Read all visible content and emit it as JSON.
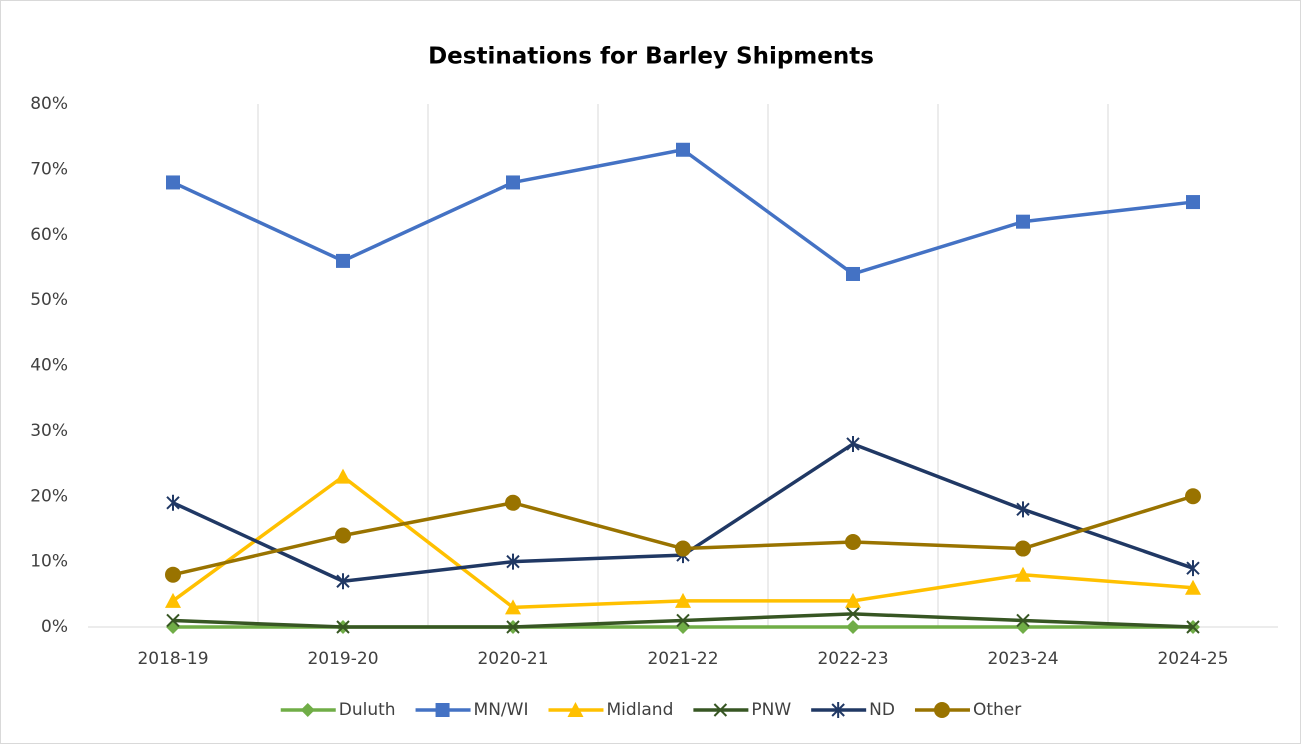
{
  "chart_data": {
    "type": "line",
    "title": "Destinations for Barley Shipments",
    "categories": [
      "2018-19",
      "2019-20",
      "2020-21",
      "2021-22",
      "2022-23",
      "2023-24",
      "2024-25"
    ],
    "series": [
      {
        "name": "Duluth",
        "color": "#70ad47",
        "marker": "diamond",
        "values": [
          0,
          0,
          0,
          0,
          0,
          0,
          0
        ]
      },
      {
        "name": "MN/WI",
        "color": "#4472c4",
        "marker": "square",
        "values": [
          68,
          56,
          68,
          73,
          54,
          62,
          65
        ]
      },
      {
        "name": "Midland",
        "color": "#ffc000",
        "marker": "triangle",
        "values": [
          4,
          23,
          3,
          4,
          4,
          8,
          6
        ]
      },
      {
        "name": "PNW",
        "color": "#375623",
        "marker": "x",
        "values": [
          1,
          0,
          0,
          1,
          2,
          1,
          0
        ]
      },
      {
        "name": "ND",
        "color": "#203864",
        "marker": "star",
        "values": [
          19,
          7,
          10,
          11,
          28,
          18,
          9
        ]
      },
      {
        "name": "Other",
        "color": "#997300",
        "marker": "circle",
        "values": [
          8,
          14,
          19,
          12,
          13,
          12,
          20
        ]
      }
    ],
    "ylim": [
      0,
      80
    ],
    "yticks": [
      {
        "value": 0,
        "label": "0%"
      },
      {
        "value": 10,
        "label": "10%"
      },
      {
        "value": 20,
        "label": "20%"
      },
      {
        "value": 30,
        "label": "30%"
      },
      {
        "value": 40,
        "label": "40%"
      },
      {
        "value": 50,
        "label": "50%"
      },
      {
        "value": 60,
        "label": "60%"
      },
      {
        "value": 70,
        "label": "70%"
      },
      {
        "value": 80,
        "label": "80%"
      }
    ],
    "grid": "vertical",
    "legend": "bottom"
  }
}
